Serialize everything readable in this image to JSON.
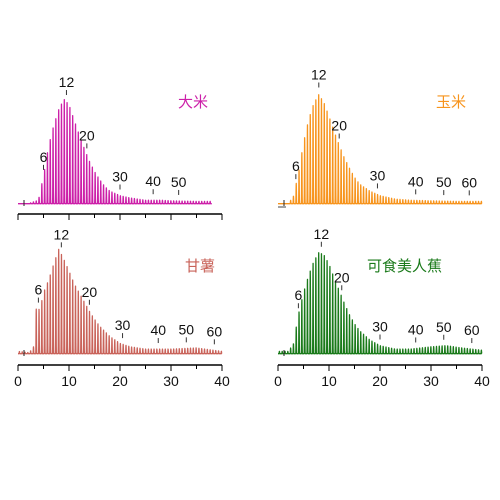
{
  "chart_data": [
    {
      "type": "line",
      "title": "大米",
      "color": "#cc1fa8",
      "x_axis": {
        "range": [
          0,
          40
        ],
        "ticks": [],
        "tick_marks": [
          0,
          5,
          10,
          15,
          20,
          25,
          30,
          35,
          40
        ]
      },
      "peak_labels": [
        {
          "text": "6",
          "x": 5
        },
        {
          "text": "12",
          "x": 9.5
        },
        {
          "text": "20",
          "x": 13.5
        },
        {
          "text": "30",
          "x": 20
        },
        {
          "text": "40",
          "x": 26.5
        },
        {
          "text": "50",
          "x": 31.5
        }
      ],
      "envelope": [
        [
          0,
          0.02
        ],
        [
          2,
          0.02
        ],
        [
          4,
          0.05
        ],
        [
          5,
          0.26
        ],
        [
          6,
          0.52
        ],
        [
          7,
          0.7
        ],
        [
          8,
          0.84
        ],
        [
          9,
          0.93
        ],
        [
          10,
          0.88
        ],
        [
          11,
          0.75
        ],
        [
          12,
          0.62
        ],
        [
          13,
          0.5
        ],
        [
          14,
          0.39
        ],
        [
          15,
          0.3
        ],
        [
          16,
          0.23
        ],
        [
          17,
          0.17
        ],
        [
          18,
          0.13
        ],
        [
          20,
          0.09
        ],
        [
          22,
          0.07
        ],
        [
          25,
          0.05
        ],
        [
          28,
          0.05
        ],
        [
          30,
          0.045
        ],
        [
          35,
          0.04
        ],
        [
          38,
          0.04
        ]
      ]
    },
    {
      "type": "line",
      "title": "玉米",
      "color": "#f7941d",
      "x_axis": {
        "range": [
          0,
          40
        ],
        "ticks": [],
        "tick_marks": []
      },
      "peak_labels": [
        {
          "text": "6",
          "x": 3.5
        },
        {
          "text": "12",
          "x": 8
        },
        {
          "text": "20",
          "x": 12
        },
        {
          "text": "30",
          "x": 19.5
        },
        {
          "text": "40",
          "x": 27
        },
        {
          "text": "50",
          "x": 32.5
        },
        {
          "text": "60",
          "x": 37.5
        }
      ],
      "envelope": [
        [
          0,
          0.02
        ],
        [
          2,
          0.02
        ],
        [
          3,
          0.08
        ],
        [
          4,
          0.28
        ],
        [
          5,
          0.55
        ],
        [
          6,
          0.75
        ],
        [
          7,
          0.89
        ],
        [
          8,
          0.97
        ],
        [
          9,
          0.9
        ],
        [
          10,
          0.78
        ],
        [
          11,
          0.65
        ],
        [
          12,
          0.53
        ],
        [
          13,
          0.42
        ],
        [
          14,
          0.33
        ],
        [
          15,
          0.25
        ],
        [
          16,
          0.19
        ],
        [
          18,
          0.13
        ],
        [
          20,
          0.09
        ],
        [
          23,
          0.06
        ],
        [
          26,
          0.05
        ],
        [
          30,
          0.045
        ],
        [
          35,
          0.04
        ],
        [
          40,
          0.04
        ]
      ]
    },
    {
      "type": "line",
      "title": "甘薯",
      "color": "#c9635a",
      "x_axis": {
        "range": [
          0,
          40
        ],
        "ticks": [
          "0",
          "10",
          "20",
          "30",
          "40"
        ],
        "tick_marks": [
          0,
          5,
          10,
          15,
          20,
          25,
          30,
          35,
          40
        ]
      },
      "peak_labels": [
        {
          "text": "6",
          "x": 4
        },
        {
          "text": "12",
          "x": 8.5
        },
        {
          "text": "20",
          "x": 14
        },
        {
          "text": "30",
          "x": 20.5
        },
        {
          "text": "40",
          "x": 27.5
        },
        {
          "text": "50",
          "x": 33
        },
        {
          "text": "60",
          "x": 38.5
        }
      ],
      "envelope": [
        [
          0,
          0.04
        ],
        [
          2,
          0.03
        ],
        [
          3,
          0.06
        ],
        [
          3.6,
          0.42
        ],
        [
          4.3,
          0.4
        ],
        [
          5,
          0.55
        ],
        [
          6,
          0.66
        ],
        [
          7,
          0.8
        ],
        [
          8,
          0.93
        ],
        [
          9,
          0.84
        ],
        [
          10,
          0.74
        ],
        [
          11,
          0.63
        ],
        [
          12,
          0.55
        ],
        [
          13,
          0.47
        ],
        [
          14,
          0.39
        ],
        [
          15,
          0.32
        ],
        [
          16,
          0.26
        ],
        [
          18,
          0.17
        ],
        [
          20,
          0.11
        ],
        [
          22,
          0.08
        ],
        [
          25,
          0.06
        ],
        [
          30,
          0.06
        ],
        [
          35,
          0.07
        ],
        [
          40,
          0.04
        ]
      ]
    },
    {
      "type": "line",
      "title": "可食美人蕉",
      "color": "#1a7a1a",
      "x_axis": {
        "range": [
          0,
          40
        ],
        "ticks": [
          "0",
          "10",
          "20",
          "30",
          "40"
        ],
        "tick_marks": [
          0,
          5,
          10,
          15,
          20,
          25,
          30,
          35,
          40
        ]
      },
      "peak_labels": [
        {
          "text": "6",
          "x": 4
        },
        {
          "text": "12",
          "x": 8.5
        },
        {
          "text": "20",
          "x": 12.5
        },
        {
          "text": "30",
          "x": 20
        },
        {
          "text": "40",
          "x": 27
        },
        {
          "text": "50",
          "x": 32.5
        },
        {
          "text": "60",
          "x": 38
        }
      ],
      "envelope": [
        [
          0,
          0.04
        ],
        [
          2,
          0.04
        ],
        [
          3,
          0.1
        ],
        [
          4,
          0.36
        ],
        [
          5,
          0.55
        ],
        [
          6,
          0.7
        ],
        [
          7,
          0.82
        ],
        [
          8,
          0.9
        ],
        [
          9,
          0.88
        ],
        [
          10,
          0.8
        ],
        [
          11,
          0.68
        ],
        [
          12,
          0.57
        ],
        [
          13,
          0.46
        ],
        [
          14,
          0.36
        ],
        [
          15,
          0.28
        ],
        [
          16,
          0.22
        ],
        [
          18,
          0.14
        ],
        [
          20,
          0.09
        ],
        [
          23,
          0.06
        ],
        [
          26,
          0.06
        ],
        [
          30,
          0.08
        ],
        [
          33,
          0.09
        ],
        [
          36,
          0.07
        ],
        [
          40,
          0.05
        ]
      ]
    }
  ]
}
